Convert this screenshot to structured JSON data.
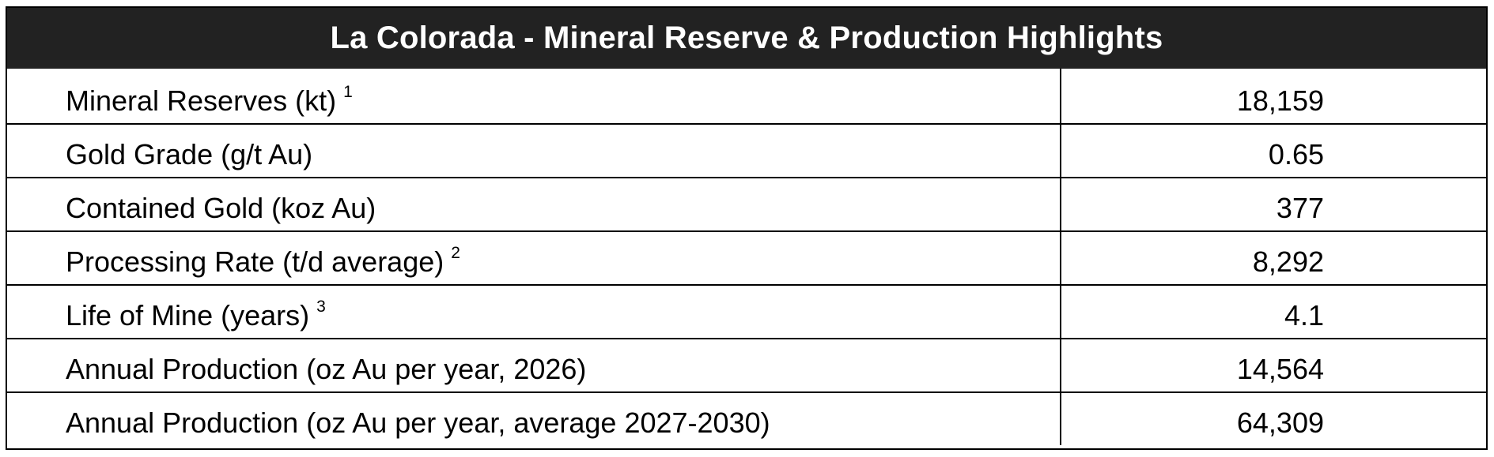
{
  "table": {
    "title": "La Colorada - Mineral Reserve & Production Highlights",
    "rows": [
      {
        "label": "Mineral Reserves (kt)",
        "footnote": "1",
        "value": "18,159"
      },
      {
        "label": "Gold Grade (g/t Au)",
        "footnote": "",
        "value": "0.65"
      },
      {
        "label": "Contained Gold (koz Au)",
        "footnote": "",
        "value": "377"
      },
      {
        "label": "Processing Rate (t/d average)",
        "footnote": "2",
        "value": "8,292"
      },
      {
        "label": "Life of Mine (years)",
        "footnote": "3",
        "value": "4.1"
      },
      {
        "label": "Annual Production (oz Au per year, 2026)",
        "footnote": "",
        "value": "14,564"
      },
      {
        "label": "Annual Production (oz Au per year, average 2027-2030)",
        "footnote": "",
        "value": "64,309"
      }
    ]
  }
}
